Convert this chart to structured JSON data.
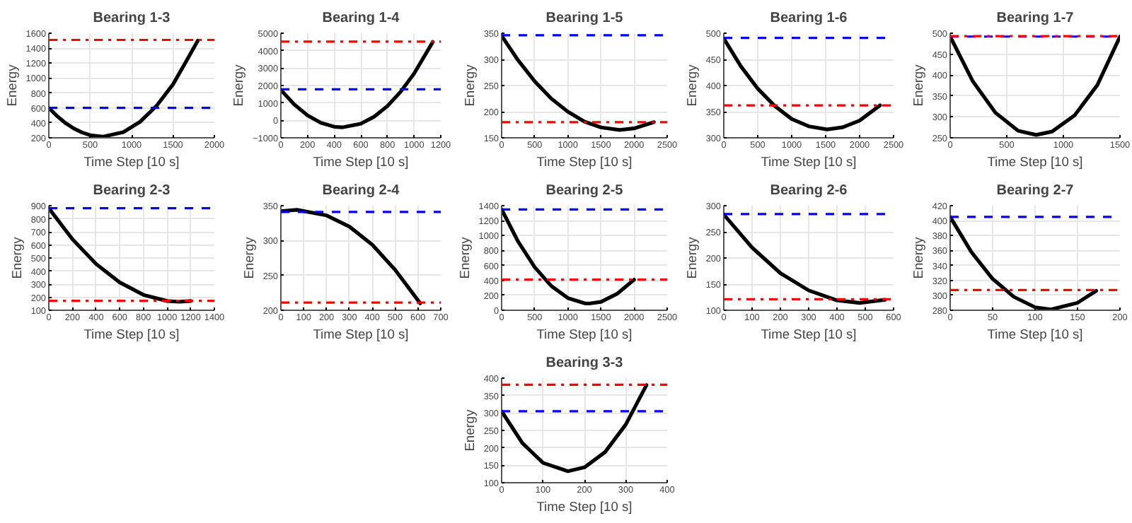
{
  "chart_data": [
    {
      "type": "line",
      "title": "Bearing 1-3",
      "xlabel": "Time Step [10 s]",
      "ylabel": "Energy",
      "grid": true,
      "line_style": "solid",
      "x": [
        0,
        100,
        200,
        300,
        400,
        500,
        650,
        900,
        1100,
        1300,
        1500,
        1650,
        1800
      ],
      "series": [
        {
          "color": "#000000",
          "values": [
            600,
            491,
            399,
            327,
            272,
            235,
            215,
            276,
            412,
            626,
            915,
            1205,
            1500
          ]
        }
      ],
      "xlim": [
        0,
        2000
      ],
      "xticks": [
        0,
        500,
        1000,
        1500,
        2000
      ],
      "ylim": [
        200,
        1600
      ],
      "yticks": [
        200,
        400,
        600,
        800,
        1000,
        1200,
        1400,
        1600
      ],
      "ref_lines": [
        {
          "axis": "y",
          "value": 600,
          "color": "#0000ff",
          "line_style": "dashed"
        },
        {
          "axis": "y",
          "value": 1510,
          "color": "#ff0000",
          "line_style": "dashdot"
        }
      ]
    },
    {
      "type": "line",
      "title": "Bearing 1-4",
      "xlabel": "Time Step [10 s]",
      "ylabel": "Energy",
      "grid": true,
      "line_style": "solid",
      "x": [
        0,
        100,
        200,
        300,
        400,
        460,
        600,
        700,
        800,
        900,
        1000,
        1140
      ],
      "series": [
        {
          "color": "#000000",
          "values": [
            1750,
            917,
            287,
            -140,
            -363,
            -400,
            -192,
            211,
            825,
            1652,
            2690,
            4500
          ]
        }
      ],
      "xlim": [
        0,
        1200
      ],
      "xticks": [
        0,
        200,
        400,
        600,
        800,
        1000,
        1200
      ],
      "ylim": [
        -1000,
        5000
      ],
      "yticks": [
        -1000,
        0,
        1000,
        2000,
        3000,
        4000,
        5000
      ],
      "ref_lines": [
        {
          "axis": "y",
          "value": 1780,
          "color": "#0000ff",
          "line_style": "dashed"
        },
        {
          "axis": "y",
          "value": 4520,
          "color": "#ff0000",
          "line_style": "dashdot"
        }
      ]
    },
    {
      "type": "line",
      "title": "Bearing 1-5",
      "xlabel": "Time Step [10 s]",
      "ylabel": "Energy",
      "grid": true,
      "line_style": "solid",
      "x": [
        0,
        250,
        500,
        750,
        1000,
        1250,
        1500,
        1780,
        2000,
        2300
      ],
      "series": [
        {
          "color": "#000000",
          "values": [
            345,
            298,
            258,
            225,
            200,
            181,
            170,
            165,
            168,
            180
          ]
        }
      ],
      "xlim": [
        0,
        2500
      ],
      "xticks": [
        0,
        500,
        1000,
        1500,
        2000,
        2500
      ],
      "ylim": [
        150,
        350
      ],
      "yticks": [
        150,
        200,
        250,
        300,
        350
      ],
      "ref_lines": [
        {
          "axis": "y",
          "value": 346,
          "color": "#0000ff",
          "line_style": "dashed"
        },
        {
          "axis": "y",
          "value": 180,
          "color": "#ff0000",
          "line_style": "dashdot"
        }
      ]
    },
    {
      "type": "line",
      "title": "Bearing 1-6",
      "xlabel": "Time Step [10 s]",
      "ylabel": "Energy",
      "grid": true,
      "line_style": "solid",
      "x": [
        0,
        250,
        500,
        750,
        1000,
        1250,
        1520,
        1750,
        2000,
        2300
      ],
      "series": [
        {
          "color": "#000000",
          "values": [
            490,
            437,
            394,
            361,
            336,
            322,
            316,
            320,
            333,
            362
          ]
        }
      ],
      "xlim": [
        0,
        2500
      ],
      "xticks": [
        0,
        500,
        1000,
        1500,
        2000,
        2500
      ],
      "ylim": [
        300,
        500
      ],
      "yticks": [
        300,
        350,
        400,
        450,
        500
      ],
      "ref_lines": [
        {
          "axis": "y",
          "value": 491,
          "color": "#0000ff",
          "line_style": "dashed"
        },
        {
          "axis": "y",
          "value": 362,
          "color": "#ff0000",
          "line_style": "dashdot"
        }
      ]
    },
    {
      "type": "line",
      "title": "Bearing 1-7",
      "xlabel": "Time Step [10 s]",
      "ylabel": "Energy",
      "grid": true,
      "line_style": "solid",
      "x": [
        0,
        200,
        400,
        600,
        760,
        900,
        1100,
        1300,
        1500
      ],
      "series": [
        {
          "color": "#000000",
          "values": [
            492,
            385,
            310,
            267,
            257,
            265,
            304,
            376,
            492
          ]
        }
      ],
      "xlim": [
        0,
        1500
      ],
      "xticks": [
        0,
        500,
        1000,
        1500
      ],
      "ylim": [
        250,
        500
      ],
      "yticks": [
        250,
        300,
        350,
        400,
        450,
        500
      ],
      "ref_lines": [
        {
          "axis": "y",
          "value": 492,
          "color": "#0000ff",
          "line_style": "dashed"
        },
        {
          "axis": "y",
          "value": 493,
          "color": "#ff0000",
          "line_style": "dashdot"
        }
      ]
    },
    {
      "type": "line",
      "title": "Bearing 2-3",
      "xlabel": "Time Step [10 s]",
      "ylabel": "Energy",
      "grid": true,
      "line_style": "solid",
      "x": [
        0,
        200,
        400,
        600,
        800,
        1000,
        1100,
        1200
      ],
      "series": [
        {
          "color": "#000000",
          "values": [
            880,
            643,
            454,
            313,
            218,
            171,
            165,
            171
          ]
        }
      ],
      "xlim": [
        0,
        1400
      ],
      "xticks": [
        0,
        200,
        400,
        600,
        800,
        1000,
        1200,
        1400
      ],
      "ylim": [
        100,
        900
      ],
      "yticks": [
        100,
        200,
        300,
        400,
        500,
        600,
        700,
        800,
        900
      ],
      "ref_lines": [
        {
          "axis": "y",
          "value": 880,
          "color": "#0000ff",
          "line_style": "dashed"
        },
        {
          "axis": "y",
          "value": 172,
          "color": "#ff0000",
          "line_style": "dashdot"
        }
      ]
    },
    {
      "type": "line",
      "title": "Bearing 2-4",
      "xlabel": "Time Step [10 s]",
      "ylabel": "Energy",
      "grid": true,
      "line_style": "solid",
      "x": [
        0,
        70,
        200,
        300,
        400,
        500,
        610
      ],
      "series": [
        {
          "color": "#000000",
          "values": [
            342,
            344,
            336,
            320,
            294,
            258,
            210
          ]
        }
      ],
      "xlim": [
        0,
        700
      ],
      "xticks": [
        0,
        100,
        200,
        300,
        400,
        500,
        600,
        700
      ],
      "ylim": [
        200,
        350
      ],
      "yticks": [
        200,
        250,
        300,
        350
      ],
      "ref_lines": [
        {
          "axis": "y",
          "value": 341,
          "color": "#0000ff",
          "line_style": "dashed"
        },
        {
          "axis": "y",
          "value": 211,
          "color": "#ff0000",
          "line_style": "dashdot"
        }
      ]
    },
    {
      "type": "line",
      "title": "Bearing 2-5",
      "xlabel": "Time Step [10 s]",
      "ylabel": "Energy",
      "grid": true,
      "line_style": "solid",
      "x": [
        0,
        250,
        500,
        750,
        1000,
        1250,
        1320,
        1500,
        1750,
        2000
      ],
      "series": [
        {
          "color": "#000000",
          "values": [
            1350,
            918,
            576,
            325,
            164,
            94,
            90,
            113,
            224,
            410
          ]
        }
      ],
      "xlim": [
        0,
        2500
      ],
      "xticks": [
        0,
        500,
        1000,
        1500,
        2000,
        2500
      ],
      "ylim": [
        0,
        1400
      ],
      "yticks": [
        0,
        200,
        400,
        600,
        800,
        1000,
        1200,
        1400
      ],
      "ref_lines": [
        {
          "axis": "y",
          "value": 1350,
          "color": "#0000ff",
          "line_style": "dashed"
        },
        {
          "axis": "y",
          "value": 410,
          "color": "#ff0000",
          "line_style": "dashdot"
        }
      ]
    },
    {
      "type": "line",
      "title": "Bearing 2-6",
      "xlabel": "Time Step [10 s]",
      "ylabel": "Energy",
      "grid": true,
      "line_style": "solid",
      "x": [
        0,
        100,
        200,
        300,
        400,
        480,
        570
      ],
      "series": [
        {
          "color": "#000000",
          "values": [
            283,
            220,
            171,
            138,
            119,
            114,
            120
          ]
        }
      ],
      "xlim": [
        0,
        600
      ],
      "xticks": [
        0,
        100,
        200,
        300,
        400,
        500,
        600
      ],
      "ylim": [
        100,
        300
      ],
      "yticks": [
        100,
        150,
        200,
        250,
        300
      ],
      "ref_lines": [
        {
          "axis": "y",
          "value": 284,
          "color": "#0000ff",
          "line_style": "dashed"
        },
        {
          "axis": "y",
          "value": 121,
          "color": "#ff0000",
          "line_style": "dashdot"
        }
      ]
    },
    {
      "type": "line",
      "title": "Bearing 2-7",
      "xlabel": "Time Step [10 s]",
      "ylabel": "Energy",
      "grid": true,
      "line_style": "solid",
      "x": [
        0,
        25,
        50,
        75,
        100,
        118,
        150,
        172
      ],
      "series": [
        {
          "color": "#000000",
          "values": [
            405,
            358,
            322,
            298,
            284,
            281,
            290,
            306
          ]
        }
      ],
      "xlim": [
        0,
        200
      ],
      "xticks": [
        0,
        50,
        100,
        150,
        200
      ],
      "ylim": [
        280,
        420
      ],
      "yticks": [
        280,
        300,
        320,
        340,
        360,
        380,
        400,
        420
      ],
      "ref_lines": [
        {
          "axis": "y",
          "value": 405,
          "color": "#0000ff",
          "line_style": "dashed"
        },
        {
          "axis": "y",
          "value": 307,
          "color": "#ff0000",
          "line_style": "dashdot"
        }
      ]
    },
    {
      "type": "line",
      "title": "Bearing 3-3",
      "xlabel": "Time Step [10 s]",
      "ylabel": "Energy",
      "grid": true,
      "line_style": "solid",
      "x": [
        0,
        50,
        100,
        160,
        200,
        250,
        300,
        350
      ],
      "series": [
        {
          "color": "#000000",
          "values": [
            305,
            214,
            157,
            133,
            144,
            188,
            267,
            380
          ]
        }
      ],
      "xlim": [
        0,
        400
      ],
      "xticks": [
        0,
        100,
        200,
        300,
        400
      ],
      "ylim": [
        100,
        400
      ],
      "yticks": [
        100,
        150,
        200,
        250,
        300,
        350,
        400
      ],
      "ref_lines": [
        {
          "axis": "y",
          "value": 305,
          "color": "#0000ff",
          "line_style": "dashed"
        },
        {
          "axis": "y",
          "value": 381,
          "color": "#ff0000",
          "line_style": "dashdot"
        }
      ]
    }
  ]
}
